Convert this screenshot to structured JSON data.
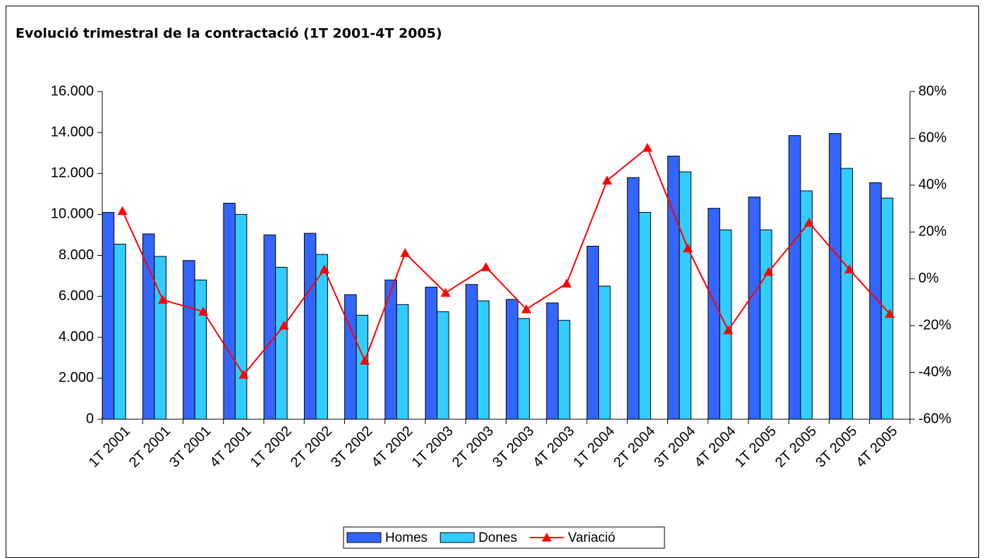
{
  "chart_data": {
    "type": "bar",
    "title": "Evolució trimestral de la contractació (1T 2001-4T 2005)",
    "categories": [
      "1T 2001",
      "2T 2001",
      "3T 2001",
      "4T 2001",
      "1T 2002",
      "2T 2002",
      "3T 2002",
      "4T 2002",
      "1T 2003",
      "2T 2003",
      "3T 2003",
      "4T 2003",
      "1T 2004",
      "2T 2004",
      "3T 2004",
      "4T 2004",
      "1T 2005",
      "2T 2005",
      "3T 2005",
      "4T 2005"
    ],
    "series": [
      {
        "name": "Homes",
        "color": "#3366ff",
        "values": [
          10100,
          9050,
          7750,
          10550,
          9000,
          9080,
          6080,
          6800,
          6450,
          6580,
          5850,
          5680,
          8450,
          11800,
          12850,
          10300,
          10850,
          13850,
          13950,
          11550
        ]
      },
      {
        "name": "Dones",
        "color": "#33ccff",
        "values": [
          8550,
          7950,
          6800,
          10000,
          7420,
          8050,
          5080,
          5600,
          5250,
          5780,
          4920,
          4830,
          6500,
          10100,
          12080,
          9250,
          9250,
          11150,
          12250,
          10800
        ]
      },
      {
        "name": "Variació",
        "color": "#ff0000",
        "type": "line",
        "axis": "y2",
        "values": [
          29,
          -9,
          -14,
          -41,
          -20,
          4,
          -35,
          11,
          -6,
          5,
          -13,
          -2,
          42,
          56,
          13,
          -22,
          3,
          24,
          4,
          -15
        ]
      }
    ],
    "ylim": [
      0,
      16000
    ],
    "yticks": [
      0,
      {
        "value": 2000,
        "label": "2.000"
      },
      {
        "value": 4000,
        "label": "4.000"
      },
      {
        "value": 6000,
        "label": "6.000"
      },
      {
        "value": 8000,
        "label": "8.000"
      },
      {
        "value": 10000,
        "label": "10.000"
      },
      {
        "value": 12000,
        "label": "12.000"
      },
      {
        "value": 14000,
        "label": "14.000"
      },
      {
        "value": 16000,
        "label": "16.000"
      }
    ],
    "y2lim": [
      -60,
      80
    ],
    "y2ticks": [
      {
        "value": -60,
        "label": "-60%"
      },
      {
        "value": -40,
        "label": "-40%"
      },
      {
        "value": -20,
        "label": "-20%"
      },
      {
        "value": 0,
        "label": "0%"
      },
      {
        "value": 20,
        "label": "20%"
      },
      {
        "value": 40,
        "label": "40%"
      },
      {
        "value": 60,
        "label": "60%"
      },
      {
        "value": 80,
        "label": "80%"
      }
    ],
    "legend": "bottom"
  }
}
